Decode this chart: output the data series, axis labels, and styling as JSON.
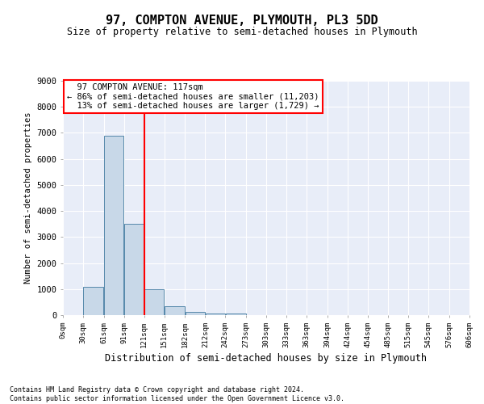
{
  "title": "97, COMPTON AVENUE, PLYMOUTH, PL3 5DD",
  "subtitle": "Size of property relative to semi-detached houses in Plymouth",
  "xlabel": "Distribution of semi-detached houses by size in Plymouth",
  "ylabel": "Number of semi-detached properties",
  "property_size": 117,
  "property_label": "97 COMPTON AVENUE: 117sqm",
  "pct_smaller": 86,
  "num_smaller": "11,203",
  "pct_larger": 13,
  "num_larger": "1,729",
  "bin_edges": [
    0,
    30,
    61,
    91,
    121,
    151,
    182,
    212,
    242,
    273,
    303,
    333,
    363,
    394,
    424,
    454,
    485,
    515,
    545,
    576,
    606
  ],
  "bar_heights": [
    0,
    1100,
    6900,
    3500,
    1000,
    350,
    130,
    70,
    60,
    0,
    0,
    0,
    0,
    0,
    0,
    0,
    0,
    0,
    0,
    0
  ],
  "bar_color": "#c8d8e8",
  "bar_edge_color": "#5588aa",
  "vline_x": 121,
  "vline_color": "red",
  "ylim": [
    0,
    9000
  ],
  "yticks": [
    0,
    1000,
    2000,
    3000,
    4000,
    5000,
    6000,
    7000,
    8000,
    9000
  ],
  "background_color": "#e8edf8",
  "box_color": "red",
  "footer_line1": "Contains HM Land Registry data © Crown copyright and database right 2024.",
  "footer_line2": "Contains public sector information licensed under the Open Government Licence v3.0."
}
